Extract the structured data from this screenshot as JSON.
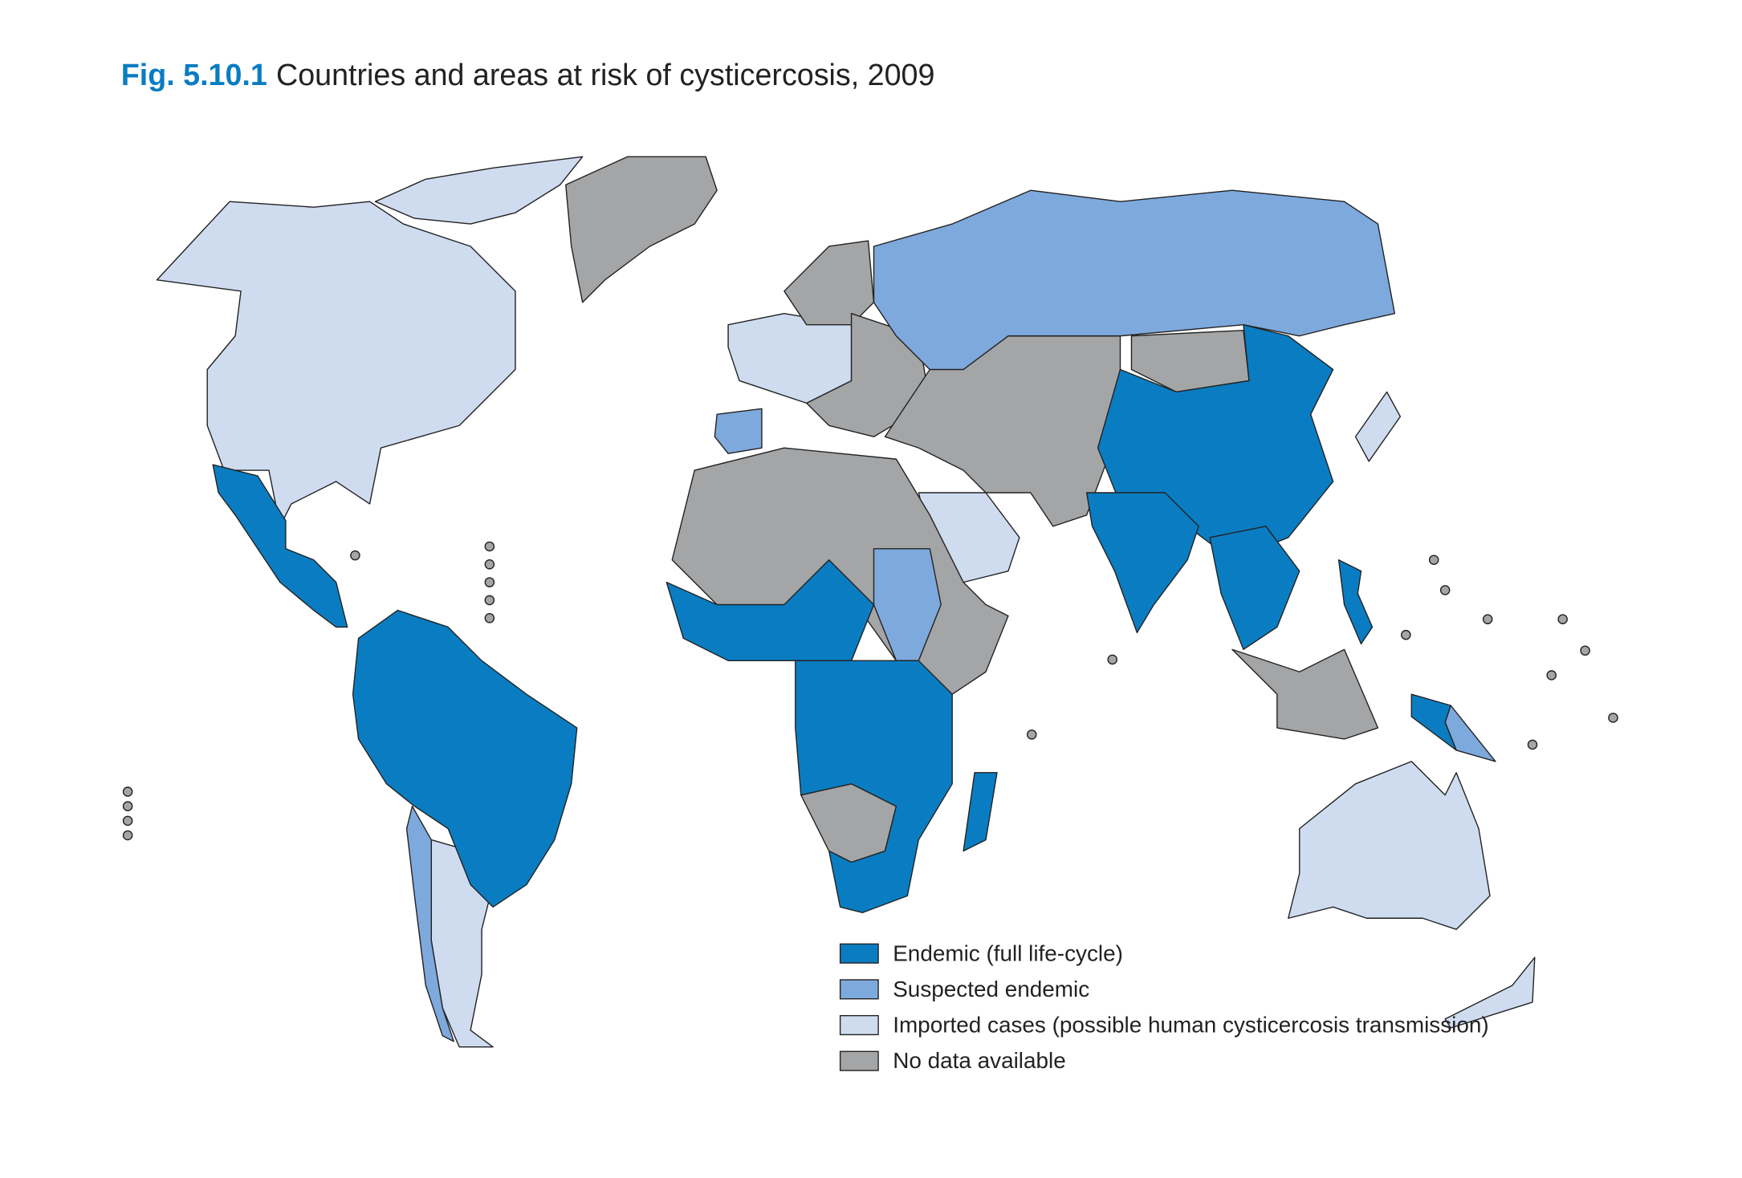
{
  "header": {
    "figure_number": "Fig. 5.10.1",
    "title": "Countries and areas at risk of cysticercosis, 2009"
  },
  "legend": [
    {
      "label": "Endemic (full life-cycle)",
      "color": "#0a7dc2"
    },
    {
      "label": "Suspected endemic",
      "color": "#7ea9dc"
    },
    {
      "label": "Imported cases (possible human cysticercosis transmission)",
      "color": "#cfdcf0"
    },
    {
      "label": "No data available",
      "color": "#a4a5a7"
    }
  ]
}
